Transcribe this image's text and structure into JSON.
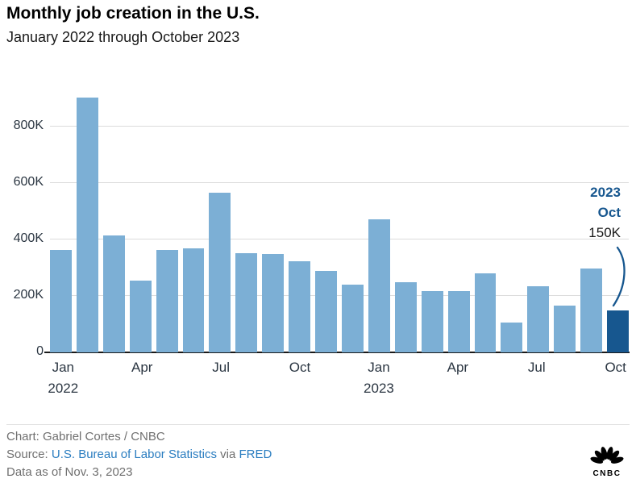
{
  "header": {
    "title": "Monthly job creation in the U.S.",
    "subtitle": "January 2022 through October 2023"
  },
  "chart_data": {
    "type": "bar",
    "title": "Monthly job creation in the U.S.",
    "subtitle": "January 2022 through October 2023",
    "value_suffix": "K",
    "categories": [
      "Jan 2022",
      "Feb 2022",
      "Mar 2022",
      "Apr 2022",
      "May 2022",
      "Jun 2022",
      "Jul 2022",
      "Aug 2022",
      "Sep 2022",
      "Oct 2022",
      "Nov 2022",
      "Dec 2022",
      "Jan 2023",
      "Feb 2023",
      "Mar 2023",
      "Apr 2023",
      "May 2023",
      "Jun 2023",
      "Jul 2023",
      "Aug 2023",
      "Sep 2023",
      "Oct 2023"
    ],
    "values": [
      364,
      904,
      414,
      254,
      364,
      370,
      568,
      352,
      350,
      324,
      290,
      239,
      472,
      248,
      217,
      217,
      281,
      105,
      236,
      165,
      297,
      150
    ],
    "ylim": [
      0,
      930
    ],
    "grid": true,
    "legend": "none",
    "highlight_index": 21,
    "y_ticks": [
      {
        "label": "0",
        "value": 0
      },
      {
        "label": "200K",
        "value": 200
      },
      {
        "label": "400K",
        "value": 400
      },
      {
        "label": "600K",
        "value": 600
      },
      {
        "label": "800K",
        "value": 800
      }
    ],
    "x_ticks": [
      {
        "index": 0,
        "label": "Jan",
        "year": "2022"
      },
      {
        "index": 3,
        "label": "Apr"
      },
      {
        "index": 6,
        "label": "Jul"
      },
      {
        "index": 9,
        "label": "Oct"
      },
      {
        "index": 12,
        "label": "Jan",
        "year": "2023"
      },
      {
        "index": 15,
        "label": "Apr"
      },
      {
        "index": 18,
        "label": "Jul"
      },
      {
        "index": 21,
        "label": "Oct"
      }
    ],
    "colors": {
      "bar": "#7cafd5",
      "highlight": "#17578f",
      "gridline": "#dcdcdc",
      "axis_text": "#2b3642",
      "axis_line": "#1a1a1a"
    },
    "annotation": {
      "year": "2023",
      "month": "Oct",
      "value": "150K"
    }
  },
  "footer": {
    "credit": "Chart: Gabriel Cortes / CNBC",
    "source_prefix": "Source:",
    "source_link_bls": "U.S. Bureau of Labor Statistics",
    "source_via": "via",
    "source_link_fred": "FRED",
    "data_as_of": "Data as of Nov. 3, 2023",
    "link_color": "#2a7dc0",
    "logo_text": "CNBC"
  }
}
